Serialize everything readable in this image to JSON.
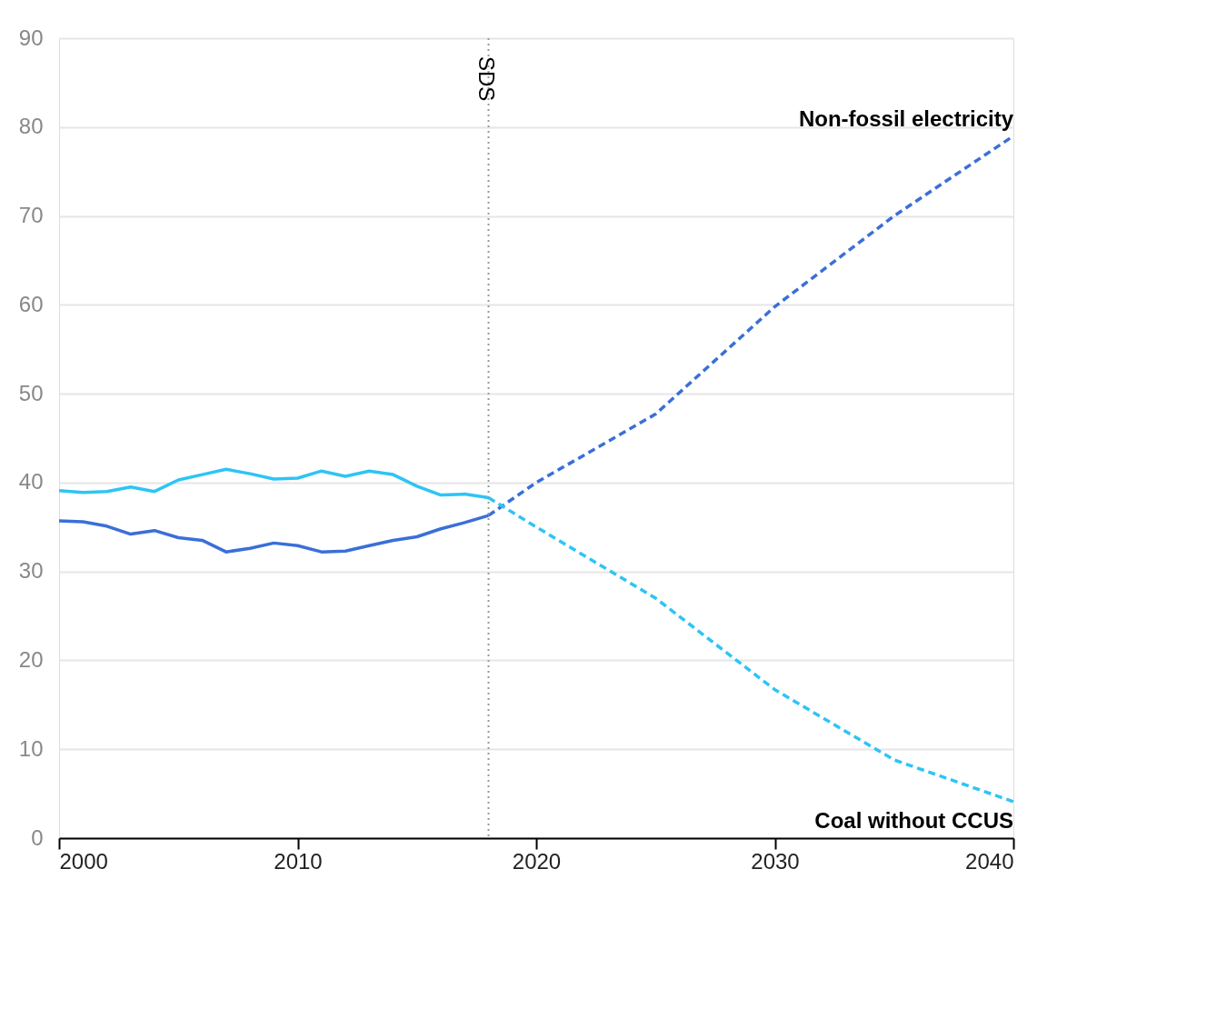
{
  "chart_data": {
    "type": "line",
    "x": [
      2000,
      2001,
      2002,
      2003,
      2004,
      2005,
      2006,
      2007,
      2008,
      2009,
      2010,
      2011,
      2012,
      2013,
      2014,
      2015,
      2016,
      2017,
      2018
    ],
    "series": [
      {
        "color": "#3a6fd8",
        "line_style": "solid",
        "values": [
          35.7,
          35.6,
          35.1,
          34.2,
          34.6,
          33.8,
          33.5,
          32.2,
          32.6,
          33.2,
          32.9,
          32.2,
          32.3,
          32.9,
          33.5,
          33.9,
          34.8,
          35.5,
          36.3
        ]
      },
      {
        "color": "#2ec4f5",
        "line_style": "solid",
        "values": [
          39.1,
          38.9,
          39.0,
          39.5,
          39.0,
          40.3,
          40.9,
          41.5,
          41.0,
          40.4,
          40.5,
          41.3,
          40.7,
          41.3,
          40.9,
          39.6,
          38.6,
          38.7,
          38.3
        ]
      },
      {
        "name": "Non-fossil electricity",
        "color": "#3a6fd8",
        "line_style": "dashed",
        "x": [
          2018,
          2020,
          2025,
          2030,
          2035,
          2040
        ],
        "values": [
          36.3,
          40.0,
          47.7,
          59.8,
          70.0,
          79.0
        ]
      },
      {
        "name": "Coal without CCUS",
        "color": "#2ec4f5",
        "line_style": "dashed",
        "x": [
          2018,
          2020,
          2025,
          2030,
          2035,
          2040
        ],
        "values": [
          38.3,
          35.0,
          27.0,
          16.7,
          8.8,
          4.1
        ]
      }
    ],
    "xlim": [
      2000,
      2040
    ],
    "xticks": [
      2000,
      2010,
      2020,
      2030,
      2040
    ],
    "ylim": [
      0,
      90
    ],
    "yticks": [
      0,
      10,
      20,
      30,
      40,
      50,
      60,
      70,
      80,
      90
    ],
    "grid": "y",
    "marker": "none",
    "ref_lines": [
      {
        "axis": "x",
        "value": 2018,
        "label": "SDS",
        "line_style": "dotted",
        "color": "#999999"
      }
    ]
  }
}
